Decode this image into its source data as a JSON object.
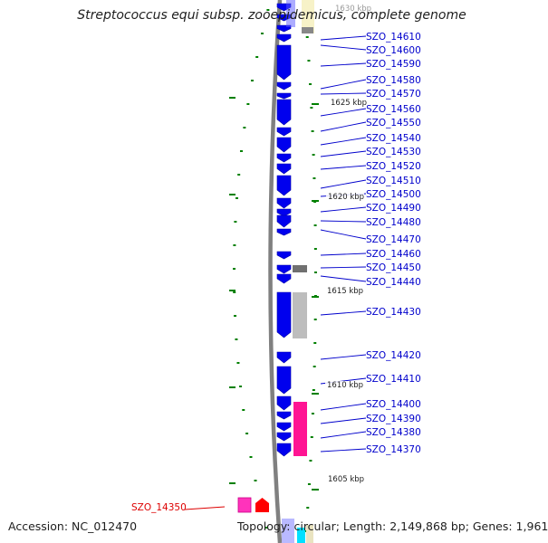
{
  "title": "Streptococcus equi subsp. zooepidemicus, complete genome",
  "footer": {
    "accession": "Accession: NC_012470",
    "topology": "Topology: circular; Length: 2,149,868 bp; Genes: 1,961"
  },
  "colors": {
    "forward_gene": "#0000ee",
    "reverse_gene_gray": "#9a9a9a",
    "reverse_gene_pink": "#ff1493",
    "highlight_gene": "#ff0000",
    "label": "#0000cc",
    "highlight_label": "#dd0000",
    "tick": "#008000",
    "backbone": "#808080"
  },
  "chart_data": {
    "type": "diagram",
    "genome": "Streptococcus equi subsp. zooepidemicus",
    "scale_labels": [
      {
        "label": "1630 kbp",
        "kbp": 1630
      },
      {
        "label": "1625 kbp",
        "kbp": 1625
      },
      {
        "label": "1620 kbp",
        "kbp": 1620
      },
      {
        "label": "1615 kbp",
        "kbp": 1615
      },
      {
        "label": "1610 kbp",
        "kbp": 1610
      },
      {
        "label": "1605 kbp",
        "kbp": 1605
      }
    ],
    "gene_labels": [
      "SZO_14610",
      "SZO_14600",
      "SZO_14590",
      "SZO_14580",
      "SZO_14570",
      "SZO_14560",
      "SZO_14550",
      "SZO_14540",
      "SZO_14530",
      "SZO_14520",
      "SZO_14510",
      "SZO_14500",
      "SZO_14490",
      "SZO_14480",
      "SZO_14470",
      "SZO_14460",
      "SZO_14450",
      "SZO_14440",
      "SZO_14430",
      "SZO_14420",
      "SZO_14410",
      "SZO_14400",
      "SZO_14390",
      "SZO_14380",
      "SZO_14370"
    ],
    "highlight_label": "SZO_14350"
  }
}
